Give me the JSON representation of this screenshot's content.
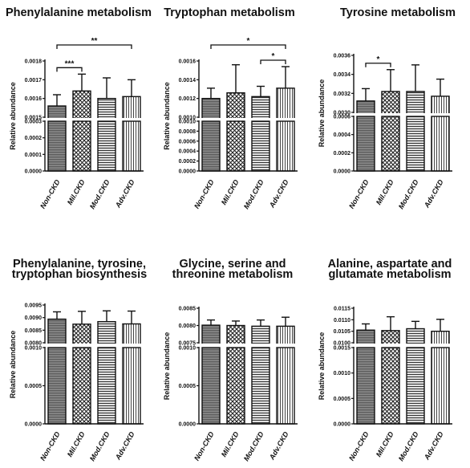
{
  "colors": {
    "ink": "#111111",
    "bar_fill": "#ffffff",
    "gap": "#ffffff"
  },
  "categories": [
    "Non-CKD",
    "Mil.CKD",
    "Mod.CKD",
    "Adv.CKD"
  ],
  "patterns": [
    "hlines",
    "crosshatch",
    "hstripes",
    "vlines"
  ],
  "chart_data": [
    {
      "type": "bar",
      "title_lines": [
        "Phenylalanine metabolism"
      ],
      "ylabel": "Relative abundance",
      "categories": [
        "Non-CKD",
        "Mil.CKD",
        "Mod.CKD",
        "Adv.CKD"
      ],
      "values": [
        0.00156,
        0.00164,
        0.0016,
        0.00161
      ],
      "errors": [
        6e-05,
        9e-05,
        0.00011,
        9e-05
      ],
      "lower_ylim": [
        0,
        0.0003
      ],
      "lower_ticks": [
        0.0,
        0.0001,
        0.0002,
        0.0003
      ],
      "lower_tick_labels": [
        "0.0000",
        "0.0001",
        "0.0002",
        "0.0003"
      ],
      "upper_ylim": [
        0.0015,
        0.0018
      ],
      "upper_ticks": [
        0.0015,
        0.0016,
        0.0017,
        0.0018
      ],
      "upper_tick_labels": [
        "0.0015",
        "0.0016",
        "0.0017",
        "0.0018"
      ],
      "significance": [
        {
          "from": 0,
          "to": 1,
          "label": "***"
        },
        {
          "from": 0,
          "to": 3,
          "label": "**"
        }
      ]
    },
    {
      "type": "bar",
      "title_lines": [
        "Tryptophan metabolism"
      ],
      "ylabel": "Relative abundance",
      "categories": [
        "Non-CKD",
        "Mil.CKD",
        "Mod.CKD",
        "Adv.CKD"
      ],
      "values": [
        0.0012,
        0.00126,
        0.00122,
        0.00131
      ],
      "errors": [
        0.00011,
        0.0003,
        0.00011,
        0.00023
      ],
      "lower_ylim": [
        0,
        0.001
      ],
      "lower_ticks": [
        0.0,
        0.0002,
        0.0004,
        0.0006,
        0.0008,
        0.001
      ],
      "lower_tick_labels": [
        "0.0000",
        "0.0002",
        "0.0004",
        "0.0006",
        "0.0008",
        "0.0010"
      ],
      "upper_ylim": [
        0.001,
        0.0016
      ],
      "upper_ticks": [
        0.001,
        0.0012,
        0.0014,
        0.0016
      ],
      "upper_tick_labels": [
        "0.0010",
        "0.0012",
        "0.0014",
        "0.0016"
      ],
      "significance": [
        {
          "from": 2,
          "to": 3,
          "label": "*"
        },
        {
          "from": 0,
          "to": 3,
          "label": "*"
        }
      ]
    },
    {
      "type": "bar",
      "title_lines": [
        "Tyrosine metabolism"
      ],
      "ylabel": "Relative abundance",
      "categories": [
        "Non-CKD",
        "Mil.CKD",
        "Mod.CKD",
        "Adv.CKD"
      ],
      "values": [
        0.00312,
        0.00322,
        0.00322,
        0.00317
      ],
      "errors": [
        0.00013,
        0.00023,
        0.00028,
        0.00018
      ],
      "lower_ylim": [
        0,
        0.0006
      ],
      "lower_ticks": [
        0.0,
        0.0002,
        0.0004,
        0.0006
      ],
      "lower_tick_labels": [
        "0.0000",
        "0.0002",
        "0.0004",
        "0.0006"
      ],
      "upper_ylim": [
        0.003,
        0.0036
      ],
      "upper_ticks": [
        0.003,
        0.0032,
        0.0034,
        0.0036
      ],
      "upper_tick_labels": [
        "0.0030",
        "0.0032",
        "0.0034",
        "0.0036"
      ],
      "significance": [
        {
          "from": 0,
          "to": 1,
          "label": "*"
        }
      ]
    },
    {
      "type": "bar",
      "title_lines": [
        "Phenylalanine, tyrosine,",
        "tryptophan biosynthesis"
      ],
      "ylabel": "Relative abundance",
      "categories": [
        "Non-CKD",
        "Mil.CKD",
        "Mod.CKD",
        "Adv.CKD"
      ],
      "values": [
        0.00894,
        0.00874,
        0.00884,
        0.00875
      ],
      "errors": [
        0.00029,
        0.00051,
        0.00043,
        0.00051
      ],
      "lower_ylim": [
        0,
        0.001
      ],
      "lower_ticks": [
        0.0,
        0.0005,
        0.001
      ],
      "lower_tick_labels": [
        "0.0000",
        "0.0005",
        "0.0010"
      ],
      "upper_ylim": [
        0.008,
        0.0095
      ],
      "upper_ticks": [
        0.008,
        0.0085,
        0.009,
        0.0095
      ],
      "upper_tick_labels": [
        "0.0080",
        "0.0085",
        "0.0090",
        "0.0095"
      ],
      "significance": []
    },
    {
      "type": "bar",
      "title_lines": [
        "Glycine, serine and",
        "threonine metabolism"
      ],
      "ylabel": "Relative abundance",
      "categories": [
        "Non-CKD",
        "Mil.CKD",
        "Mod.CKD",
        "Adv.CKD"
      ],
      "values": [
        0.00801,
        0.008,
        0.00798,
        0.00798
      ],
      "errors": [
        0.00015,
        0.00013,
        0.00018,
        0.00026
      ],
      "lower_ylim": [
        0,
        0.001
      ],
      "lower_ticks": [
        0.0,
        0.0005,
        0.001
      ],
      "lower_tick_labels": [
        "0.0000",
        "0.0005",
        "0.0010"
      ],
      "upper_ylim": [
        0.0075,
        0.0085
      ],
      "upper_ticks": [
        0.0075,
        0.008,
        0.0085
      ],
      "upper_tick_labels": [
        "0.0075",
        "0.0080",
        "0.0085"
      ],
      "significance": []
    },
    {
      "type": "bar",
      "title_lines": [
        "Alanine, aspartate and",
        "glutamate metabolism"
      ],
      "ylabel": "Relative abundance",
      "categories": [
        "Non-CKD",
        "Mil.CKD",
        "Mod.CKD",
        "Adv.CKD"
      ],
      "values": [
        0.01055,
        0.01053,
        0.01061,
        0.0105
      ],
      "errors": [
        0.00027,
        0.0006,
        0.00032,
        0.00052
      ],
      "lower_ylim": [
        0,
        0.0015
      ],
      "lower_ticks": [
        0.0,
        0.0005,
        0.001,
        0.0015
      ],
      "lower_tick_labels": [
        "0.0000",
        "0.0005",
        "0.0010",
        "0.0015"
      ],
      "upper_ylim": [
        0.01,
        0.0115
      ],
      "upper_ticks": [
        0.01,
        0.0105,
        0.011,
        0.0115
      ],
      "upper_tick_labels": [
        "0.0100",
        "0.0105",
        "0.0110",
        "0.0115"
      ],
      "significance": []
    }
  ]
}
